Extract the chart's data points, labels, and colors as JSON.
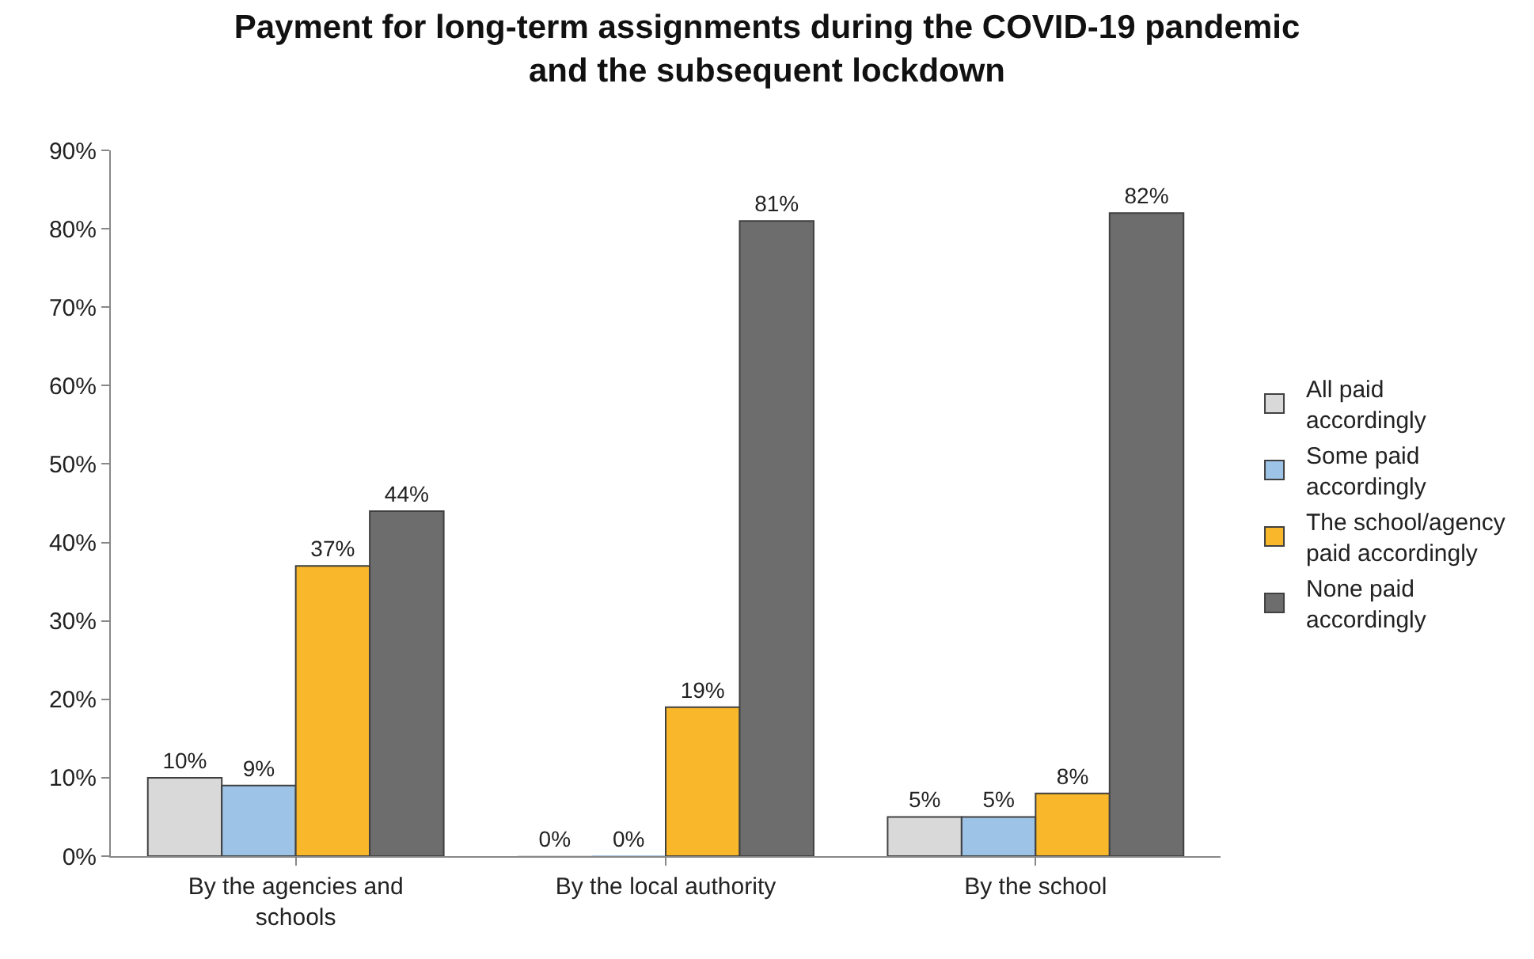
{
  "chart_data": {
    "type": "bar",
    "title": "Payment for long-term assignments during the COVID-19 pandemic and the subsequent lockdown",
    "categories": [
      "By the agencies and schools",
      "By the local authority",
      "By the school"
    ],
    "series": [
      {
        "name": "All paid accordingly",
        "color": "#d9d9d9",
        "values": [
          10,
          0,
          5
        ],
        "value_labels": [
          "10%",
          "0%",
          "5%"
        ]
      },
      {
        "name": "Some paid accordingly",
        "color": "#9dc3e6",
        "values": [
          9,
          0,
          5
        ],
        "value_labels": [
          "9%",
          "0%",
          "5%"
        ]
      },
      {
        "name": "The school/agency paid accordingly",
        "color": "#f9b82b",
        "values": [
          37,
          19,
          8
        ],
        "value_labels": [
          "37%",
          "19%",
          "8%"
        ]
      },
      {
        "name": "None paid accordingly",
        "color": "#6d6d6d",
        "values": [
          44,
          81,
          82
        ],
        "value_labels": [
          "44%",
          "81%",
          "82%"
        ]
      }
    ],
    "ylim": [
      0,
      90
    ],
    "yticks": [
      {
        "value": 0,
        "label": "0%"
      },
      {
        "value": 10,
        "label": "10%"
      },
      {
        "value": 20,
        "label": "20%"
      },
      {
        "value": 30,
        "label": "30%"
      },
      {
        "value": 40,
        "label": "40%"
      },
      {
        "value": 50,
        "label": "50%"
      },
      {
        "value": 60,
        "label": "60%"
      },
      {
        "value": 70,
        "label": "70%"
      },
      {
        "value": 80,
        "label": "80%"
      },
      {
        "value": 90,
        "label": "90%"
      }
    ],
    "grid": false,
    "legend": "right"
  }
}
